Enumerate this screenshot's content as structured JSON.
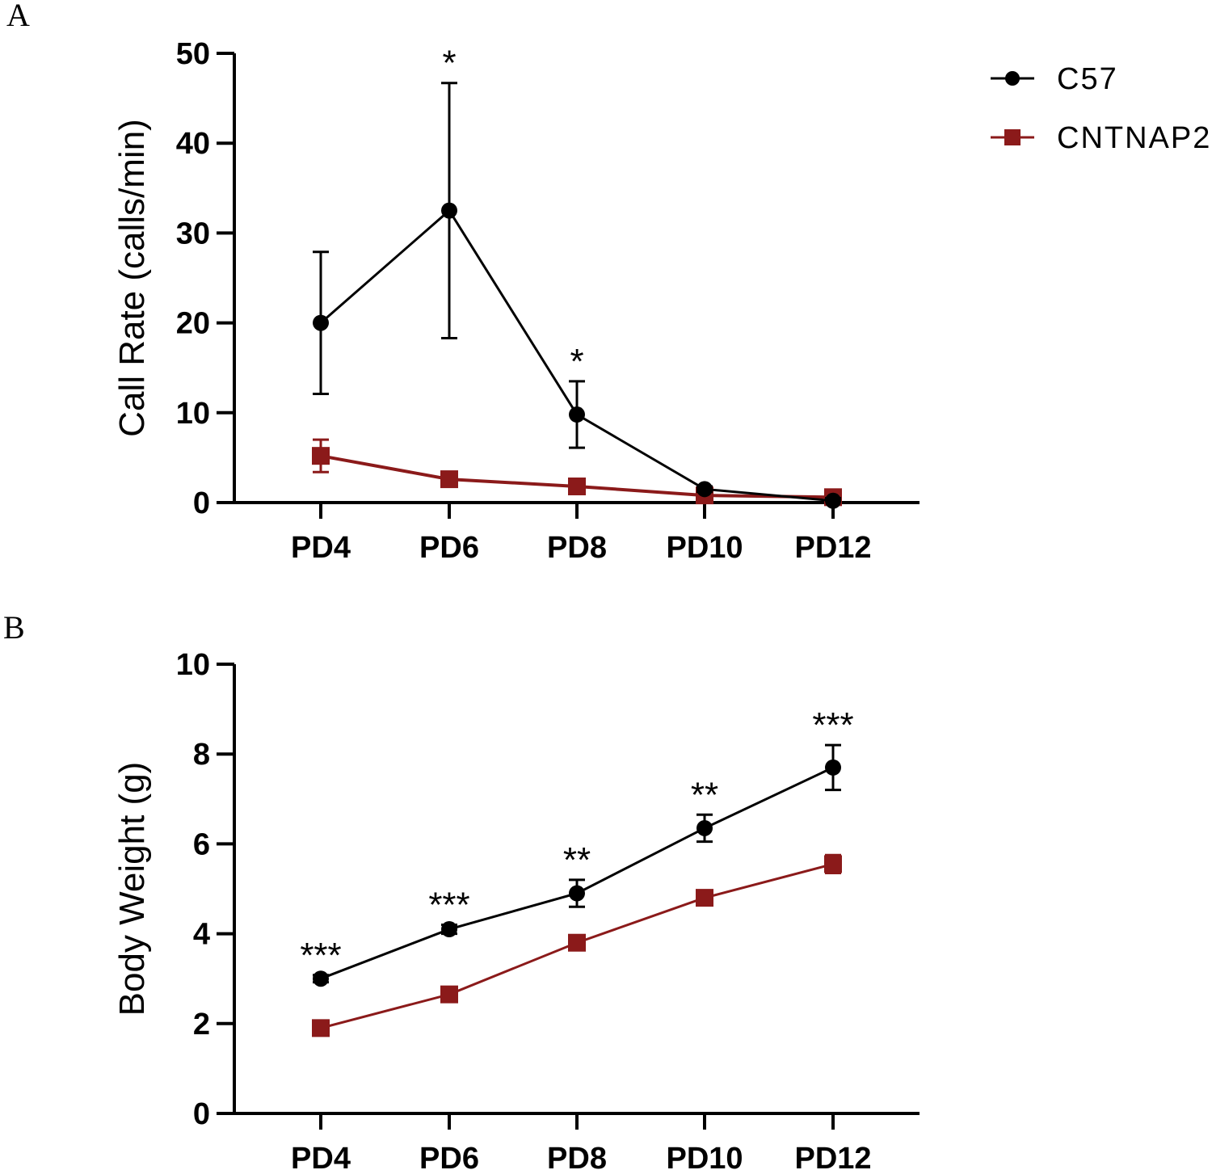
{
  "colors": {
    "c57": "#000000",
    "cntnap2": "#8b1a1a",
    "axis": "#000000"
  },
  "legend": [
    {
      "label": "C57",
      "series": 0
    },
    {
      "label": "CNTNAP2",
      "series": 1
    }
  ],
  "chart_data": [
    {
      "panel": "A",
      "type": "line",
      "ylabel": "Call Rate (calls/min)",
      "xlabel": "",
      "ylim": [
        0,
        50
      ],
      "yticks": [
        0,
        10,
        20,
        30,
        40,
        50
      ],
      "categories": [
        "PD4",
        "PD6",
        "PD8",
        "PD10",
        "PD12"
      ],
      "series": [
        {
          "name": "C57",
          "marker": "circle",
          "values": [
            20,
            32.5,
            9.8,
            1.5,
            0.2
          ],
          "errors": [
            7.9,
            14.2,
            3.7,
            0.3,
            0.3
          ]
        },
        {
          "name": "CNTNAP2",
          "marker": "square",
          "values": [
            5.2,
            2.6,
            1.8,
            0.8,
            0.6
          ],
          "errors": [
            1.8,
            0.4,
            0.3,
            0.2,
            0.2
          ]
        }
      ],
      "annotations": [
        "",
        "*",
        "*",
        "",
        ""
      ]
    },
    {
      "panel": "B",
      "type": "line",
      "ylabel": "Body Weight (g)",
      "xlabel": "",
      "ylim": [
        0,
        10
      ],
      "yticks": [
        0,
        2,
        4,
        6,
        8,
        10
      ],
      "categories": [
        "PD4",
        "PD6",
        "PD8",
        "PD10",
        "PD12"
      ],
      "series": [
        {
          "name": "C57",
          "marker": "circle",
          "values": [
            3.0,
            4.1,
            4.9,
            6.35,
            7.7
          ],
          "errors": [
            0.08,
            0.1,
            0.3,
            0.3,
            0.5
          ]
        },
        {
          "name": "CNTNAP2",
          "marker": "square",
          "values": [
            1.9,
            2.65,
            3.8,
            4.8,
            5.55
          ],
          "errors": [
            0.1,
            0.1,
            0.1,
            0.15,
            0.2
          ]
        }
      ],
      "annotations": [
        "***",
        "***",
        "**",
        "**",
        "***"
      ]
    }
  ]
}
